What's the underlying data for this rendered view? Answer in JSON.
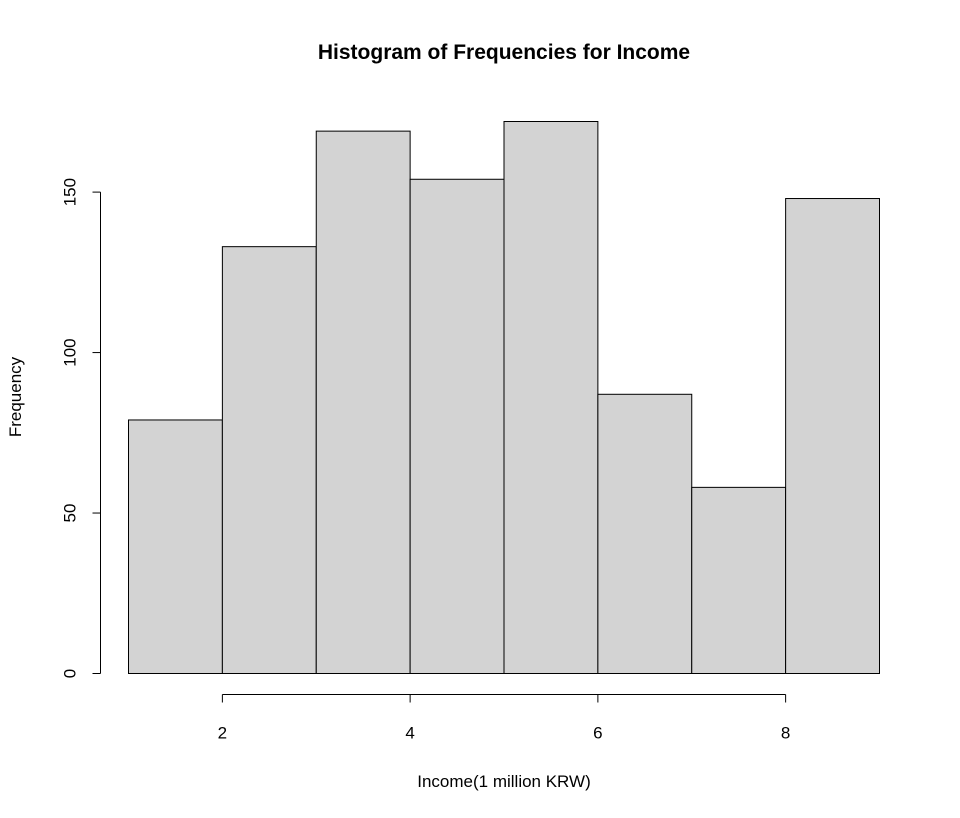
{
  "chart_data": {
    "type": "bar",
    "title": "Histogram of Frequencies for Income",
    "xlabel": "Income(1 million KRW)",
    "ylabel": "Frequency",
    "bins": [
      {
        "start": 1,
        "end": 2,
        "value": 79
      },
      {
        "start": 2,
        "end": 3,
        "value": 133
      },
      {
        "start": 3,
        "end": 4,
        "value": 169
      },
      {
        "start": 4,
        "end": 5,
        "value": 154
      },
      {
        "start": 5,
        "end": 6,
        "value": 172
      },
      {
        "start": 6,
        "end": 7,
        "value": 87
      },
      {
        "start": 7,
        "end": 8,
        "value": 58
      },
      {
        "start": 8,
        "end": 9,
        "value": 148
      }
    ],
    "x_ticks": [
      2,
      4,
      6,
      8
    ],
    "y_ticks": [
      0,
      50,
      100,
      150
    ],
    "xlim": [
      1,
      9
    ],
    "ylim": [
      0,
      172
    ],
    "bar_color": "#d3d3d3",
    "grid": false
  }
}
